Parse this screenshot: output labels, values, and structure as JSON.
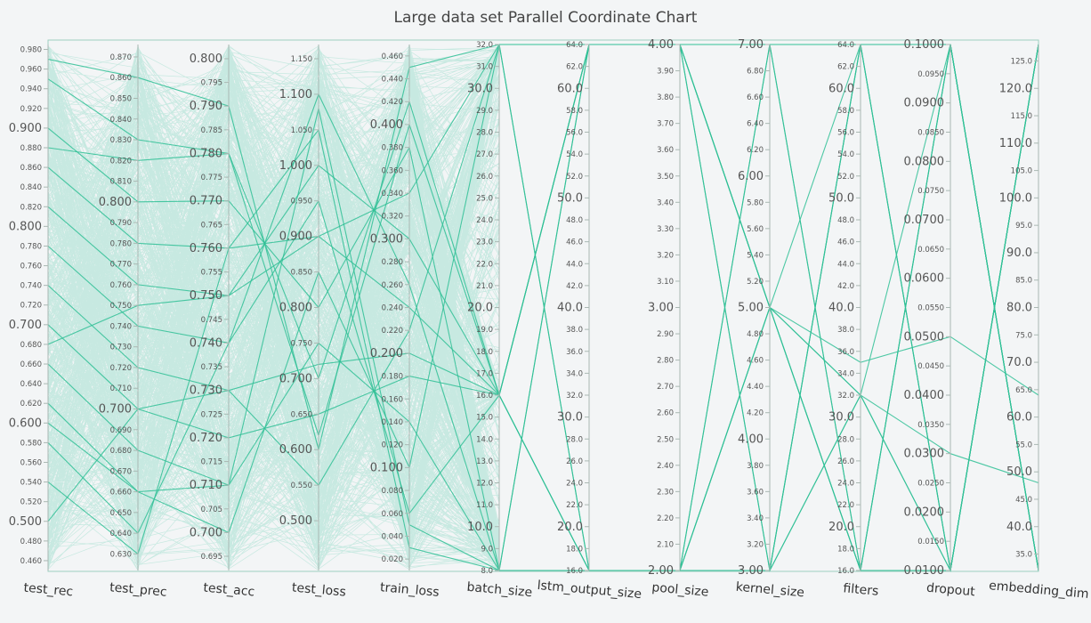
{
  "chart_data": {
    "type": "parallel_coordinates",
    "title": "Large data set Parallel Coordinate Chart",
    "line_color": "#2fbf95",
    "dimensions": [
      {
        "name": "test_rec",
        "range": [
          0.45,
          0.985
        ],
        "ticks": [
          0.46,
          0.48,
          0.5,
          0.52,
          0.54,
          0.56,
          0.58,
          0.6,
          0.62,
          0.64,
          0.66,
          0.68,
          0.7,
          0.72,
          0.74,
          0.76,
          0.78,
          0.8,
          0.82,
          0.84,
          0.86,
          0.88,
          0.9,
          0.92,
          0.94,
          0.96,
          0.98
        ],
        "major": [
          0.5,
          0.6,
          0.7,
          0.8,
          0.9
        ],
        "decimals": 3
      },
      {
        "name": "test_prec",
        "range": [
          0.622,
          0.876
        ],
        "ticks": [
          0.63,
          0.64,
          0.65,
          0.66,
          0.67,
          0.68,
          0.69,
          0.7,
          0.71,
          0.72,
          0.73,
          0.74,
          0.75,
          0.76,
          0.77,
          0.78,
          0.79,
          0.8,
          0.81,
          0.82,
          0.83,
          0.84,
          0.85,
          0.86,
          0.87
        ],
        "major": [
          0.7,
          0.8
        ],
        "decimals": 3
      },
      {
        "name": "test_acc",
        "range": [
          0.692,
          0.803
        ],
        "ticks": [
          0.695,
          0.7,
          0.705,
          0.71,
          0.715,
          0.72,
          0.725,
          0.73,
          0.735,
          0.74,
          0.745,
          0.75,
          0.755,
          0.76,
          0.765,
          0.77,
          0.775,
          0.78,
          0.785,
          0.79,
          0.795,
          0.8
        ],
        "major": [
          0.7,
          0.71,
          0.72,
          0.73,
          0.74,
          0.75,
          0.76,
          0.77,
          0.78,
          0.79,
          0.8
        ],
        "decimals": 3
      },
      {
        "name": "test_loss",
        "range": [
          0.43,
          1.17
        ],
        "ticks": [
          0.5,
          0.55,
          0.6,
          0.65,
          0.7,
          0.75,
          0.8,
          0.85,
          0.9,
          0.95,
          1.0,
          1.05,
          1.1,
          1.15
        ],
        "major": [
          0.5,
          0.6,
          0.7,
          0.8,
          0.9,
          1.0,
          1.1
        ],
        "decimals": 3
      },
      {
        "name": "train_loss",
        "range": [
          0.01,
          0.47
        ],
        "ticks": [
          0.02,
          0.04,
          0.06,
          0.08,
          0.1,
          0.12,
          0.14,
          0.16,
          0.18,
          0.2,
          0.22,
          0.24,
          0.26,
          0.28,
          0.3,
          0.32,
          0.34,
          0.36,
          0.38,
          0.4,
          0.42,
          0.44,
          0.46
        ],
        "major": [
          0.1,
          0.2,
          0.3,
          0.4
        ],
        "decimals": 3
      },
      {
        "name": "batch_size",
        "range": [
          8,
          32
        ],
        "ticks": [
          8,
          9,
          10,
          11,
          12,
          13,
          14,
          15,
          16,
          17,
          18,
          19,
          20,
          21,
          22,
          23,
          24,
          25,
          26,
          27,
          28,
          29,
          30,
          31,
          32
        ],
        "major": [
          10,
          20,
          30
        ],
        "decimals": 1
      },
      {
        "name": "lstm_output_size",
        "range": [
          16,
          64
        ],
        "ticks": [
          16,
          18,
          20,
          22,
          24,
          26,
          28,
          30,
          32,
          34,
          36,
          38,
          40,
          42,
          44,
          46,
          48,
          50,
          52,
          54,
          56,
          58,
          60,
          62,
          64
        ],
        "major": [
          20,
          30,
          40,
          50,
          60
        ],
        "decimals": 1
      },
      {
        "name": "pool_size",
        "range": [
          2,
          4
        ],
        "ticks": [
          2.0,
          2.1,
          2.2,
          2.3,
          2.4,
          2.5,
          2.6,
          2.7,
          2.8,
          2.9,
          3.0,
          3.1,
          3.2,
          3.3,
          3.4,
          3.5,
          3.6,
          3.7,
          3.8,
          3.9,
          4.0
        ],
        "major": [
          2,
          3,
          4
        ],
        "decimals": 2
      },
      {
        "name": "kernel_size",
        "range": [
          3,
          7
        ],
        "ticks": [
          3.0,
          3.2,
          3.4,
          3.6,
          3.8,
          4.0,
          4.2,
          4.4,
          4.6,
          4.8,
          5.0,
          5.2,
          5.4,
          5.6,
          5.8,
          6.0,
          6.2,
          6.4,
          6.6,
          6.8,
          7.0
        ],
        "major": [
          3,
          4,
          5,
          6,
          7
        ],
        "decimals": 2
      },
      {
        "name": "filters",
        "range": [
          16,
          64
        ],
        "ticks": [
          16,
          18,
          20,
          22,
          24,
          26,
          28,
          30,
          32,
          34,
          36,
          38,
          40,
          42,
          44,
          46,
          48,
          50,
          52,
          54,
          56,
          58,
          60,
          62,
          64
        ],
        "major": [
          20,
          30,
          40,
          50,
          60
        ],
        "decimals": 1
      },
      {
        "name": "dropout",
        "range": [
          0.01,
          0.1
        ],
        "ticks": [
          0.01,
          0.015,
          0.02,
          0.025,
          0.03,
          0.035,
          0.04,
          0.045,
          0.05,
          0.055,
          0.06,
          0.065,
          0.07,
          0.075,
          0.08,
          0.085,
          0.09,
          0.095,
          0.1
        ],
        "major": [
          0.01,
          0.02,
          0.03,
          0.04,
          0.05,
          0.06,
          0.07,
          0.08,
          0.09,
          0.1
        ],
        "decimals": 4
      },
      {
        "name": "embedding_dim",
        "range": [
          32,
          128
        ],
        "ticks": [
          35,
          40,
          45,
          50,
          55,
          60,
          65,
          70,
          75,
          80,
          85,
          90,
          95,
          100,
          105,
          110,
          115,
          120,
          125
        ],
        "major": [
          40,
          50,
          60,
          70,
          80,
          90,
          100,
          110,
          120
        ],
        "decimals": 1
      }
    ],
    "records": [
      [
        0.97,
        0.86,
        0.79,
        0.6,
        0.45,
        32,
        16,
        2,
        3,
        64,
        0.01,
        128
      ],
      [
        0.95,
        0.83,
        0.78,
        0.7,
        0.42,
        16,
        64,
        4,
        7,
        16,
        0.1,
        32
      ],
      [
        0.9,
        0.8,
        0.77,
        0.8,
        0.38,
        8,
        16,
        2,
        5,
        32,
        0.01,
        128
      ],
      [
        0.86,
        0.78,
        0.76,
        0.9,
        0.34,
        32,
        64,
        4,
        3,
        64,
        0.1,
        32
      ],
      [
        0.82,
        0.76,
        0.75,
        1.0,
        0.3,
        16,
        16,
        2,
        7,
        16,
        0.01,
        128
      ],
      [
        0.78,
        0.74,
        0.74,
        1.1,
        0.26,
        8,
        64,
        4,
        5,
        64,
        0.1,
        32
      ],
      [
        0.74,
        0.72,
        0.73,
        0.55,
        0.22,
        32,
        16,
        2,
        3,
        32,
        0.01,
        128
      ],
      [
        0.7,
        0.7,
        0.72,
        0.65,
        0.18,
        16,
        64,
        4,
        7,
        64,
        0.1,
        32
      ],
      [
        0.66,
        0.68,
        0.71,
        0.75,
        0.14,
        8,
        16,
        2,
        5,
        16,
        0.01,
        128
      ],
      [
        0.62,
        0.66,
        0.7,
        0.85,
        0.1,
        32,
        64,
        4,
        3,
        32,
        0.1,
        32
      ],
      [
        0.58,
        0.64,
        0.74,
        0.95,
        0.06,
        16,
        16,
        2,
        7,
        64,
        0.01,
        128
      ],
      [
        0.54,
        0.63,
        0.76,
        1.05,
        0.03,
        8,
        64,
        4,
        5,
        16,
        0.1,
        32
      ],
      [
        0.5,
        0.7,
        0.73,
        0.72,
        0.2,
        16,
        64,
        4,
        5,
        35,
        0.05,
        64
      ],
      [
        0.88,
        0.82,
        0.78,
        0.62,
        0.4,
        16,
        16,
        2,
        5,
        32,
        0.03,
        48
      ],
      [
        0.68,
        0.75,
        0.75,
        0.9,
        0.24,
        16,
        64,
        4,
        5,
        16,
        0.1,
        32
      ],
      [
        0.6,
        0.66,
        0.71,
        1.08,
        0.05,
        8,
        16,
        2,
        3,
        64,
        0.01,
        128
      ]
    ]
  }
}
